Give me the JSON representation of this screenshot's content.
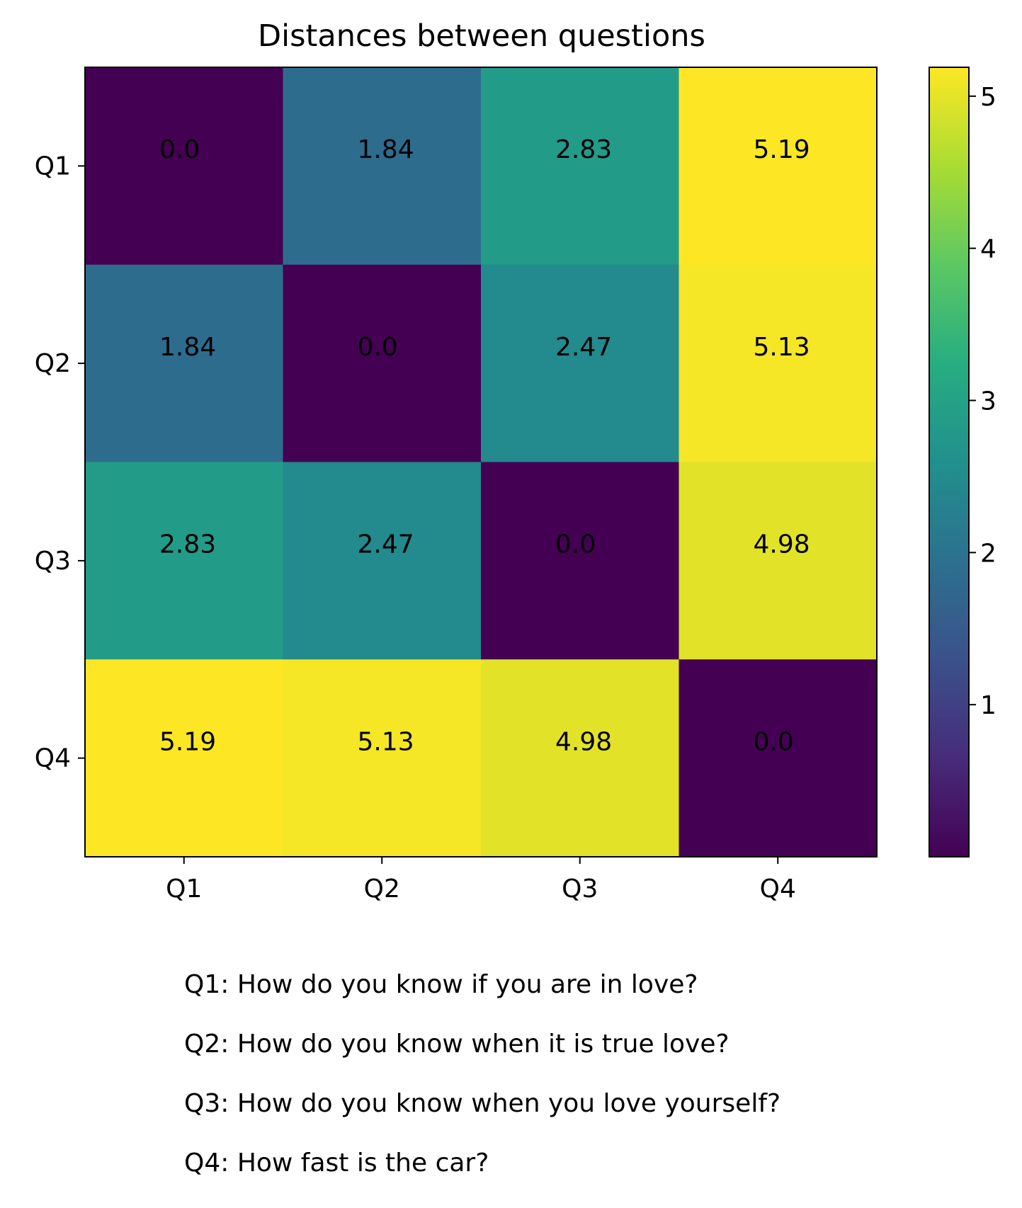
{
  "chart_data": {
    "type": "heatmap",
    "title": "Distances between questions",
    "xlabel": "",
    "ylabel": "",
    "x_categories": [
      "Q1",
      "Q2",
      "Q3",
      "Q4"
    ],
    "y_categories": [
      "Q1",
      "Q2",
      "Q3",
      "Q4"
    ],
    "values": [
      [
        0.0,
        1.84,
        2.83,
        5.19
      ],
      [
        1.84,
        0.0,
        2.47,
        5.13
      ],
      [
        2.83,
        2.47,
        0.0,
        4.98
      ],
      [
        5.19,
        5.13,
        4.98,
        0.0
      ]
    ],
    "cell_labels": [
      [
        "0.0",
        "1.84",
        "2.83",
        "5.19"
      ],
      [
        "1.84",
        "0.0",
        "2.47",
        "5.13"
      ],
      [
        "2.83",
        "2.47",
        "0.0",
        "4.98"
      ],
      [
        "5.19",
        "5.13",
        "4.98",
        "0.0"
      ]
    ],
    "colormap": "viridis",
    "colorbar": {
      "range": [
        0.0,
        5.19
      ],
      "ticks": [
        1,
        2,
        3,
        4,
        5
      ],
      "tick_labels": [
        "1",
        "2",
        "3",
        "4",
        "5"
      ],
      "placement": "right"
    },
    "grid": false
  },
  "footnotes": [
    "Q1: How do you know if you are in love?",
    "Q2: How do you know when it is true love?",
    "Q3: How do you know when you love yourself?",
    "Q4: How fast is the car?"
  ]
}
